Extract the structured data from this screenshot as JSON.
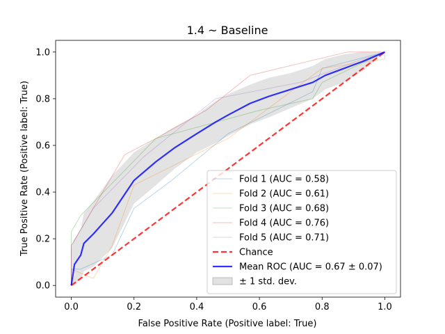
{
  "chart_data": {
    "type": "line",
    "title": "1.4 ~ Baseline",
    "xlabel": "False Positive Rate (Positive label: True)",
    "ylabel": "True Positive Rate (Positive label: True)",
    "xlim": [
      -0.05,
      1.05
    ],
    "ylim": [
      -0.05,
      1.05
    ],
    "xticks": [
      "0.0",
      "0.2",
      "0.4",
      "0.6",
      "0.8",
      "1.0"
    ],
    "yticks": [
      "0.0",
      "0.2",
      "0.4",
      "0.6",
      "0.8",
      "1.0"
    ],
    "grid": false,
    "legend_position": "lower-right",
    "series": [
      {
        "name": "Fold 1 (AUC = 0.58)",
        "color": "#1f77b4",
        "x": [
          0.0,
          0.0,
          0.03,
          0.03,
          0.13,
          0.2,
          0.32,
          0.5,
          0.77,
          0.8,
          1.0
        ],
        "y": [
          0.0,
          0.07,
          0.07,
          0.07,
          0.13,
          0.33,
          0.45,
          0.65,
          0.83,
          0.93,
          1.0
        ]
      },
      {
        "name": "Fold 2 (AUC = 0.61)",
        "color": "#ff7f0e",
        "x": [
          0.0,
          0.0,
          0.07,
          0.13,
          0.2,
          0.5,
          0.8,
          1.0,
          1.0
        ],
        "y": [
          0.0,
          0.07,
          0.03,
          0.17,
          0.43,
          0.63,
          0.93,
          0.97,
          1.0
        ]
      },
      {
        "name": "Fold 3 (AUC = 0.68)",
        "color": "#2ca02c",
        "x": [
          0.0,
          0.0,
          0.03,
          0.27,
          0.6,
          0.77,
          0.8,
          1.0
        ],
        "y": [
          0.0,
          0.23,
          0.3,
          0.63,
          0.75,
          0.8,
          0.87,
          1.0
        ]
      },
      {
        "name": "Fold 4 (AUC = 0.76)",
        "color": "#d62728",
        "x": [
          0.0,
          0.0,
          0.17,
          0.27,
          0.43,
          0.57,
          0.88,
          1.0
        ],
        "y": [
          0.0,
          0.17,
          0.56,
          0.63,
          0.75,
          0.9,
          1.0,
          1.0
        ]
      },
      {
        "name": "Fold 5 (AUC = 0.71)",
        "color": "#9467bd",
        "x": [
          0.0,
          0.0,
          0.07,
          0.23,
          0.46,
          0.73,
          0.93,
          1.0
        ],
        "y": [
          0.0,
          0.17,
          0.33,
          0.55,
          0.8,
          0.87,
          0.97,
          1.0
        ]
      },
      {
        "name": "Chance",
        "color": "#ff0000",
        "x": [
          0.0,
          1.0
        ],
        "y": [
          0.0,
          1.0
        ]
      },
      {
        "name": "Mean ROC (AUC = 0.67 ± 0.07)",
        "color": "#0000ff",
        "x": [
          0.0,
          0.01,
          0.03,
          0.04,
          0.07,
          0.13,
          0.2,
          0.27,
          0.33,
          0.4,
          0.46,
          0.5,
          0.57,
          0.63,
          0.7,
          0.77,
          0.81,
          0.87,
          0.93,
          1.0
        ],
        "y": [
          0.0,
          0.09,
          0.13,
          0.18,
          0.22,
          0.31,
          0.45,
          0.53,
          0.59,
          0.65,
          0.7,
          0.73,
          0.78,
          0.81,
          0.84,
          0.87,
          0.9,
          0.93,
          0.96,
          1.0
        ]
      }
    ],
    "band": {
      "name": "± 1 std. dev.",
      "color": "#c0c0c0",
      "x": [
        0.0,
        0.01,
        0.03,
        0.04,
        0.07,
        0.13,
        0.2,
        0.27,
        0.33,
        0.4,
        0.46,
        0.5,
        0.57,
        0.63,
        0.7,
        0.77,
        0.81,
        0.87,
        0.93,
        1.0
      ],
      "upper": [
        0.16,
        0.2,
        0.24,
        0.31,
        0.36,
        0.47,
        0.57,
        0.63,
        0.68,
        0.73,
        0.79,
        0.82,
        0.86,
        0.89,
        0.91,
        0.94,
        0.97,
        0.99,
        1.0,
        1.0
      ],
      "lower": [
        0.0,
        0.0,
        0.03,
        0.06,
        0.08,
        0.16,
        0.35,
        0.43,
        0.5,
        0.57,
        0.61,
        0.64,
        0.69,
        0.72,
        0.76,
        0.8,
        0.84,
        0.87,
        0.92,
        1.0
      ]
    }
  }
}
